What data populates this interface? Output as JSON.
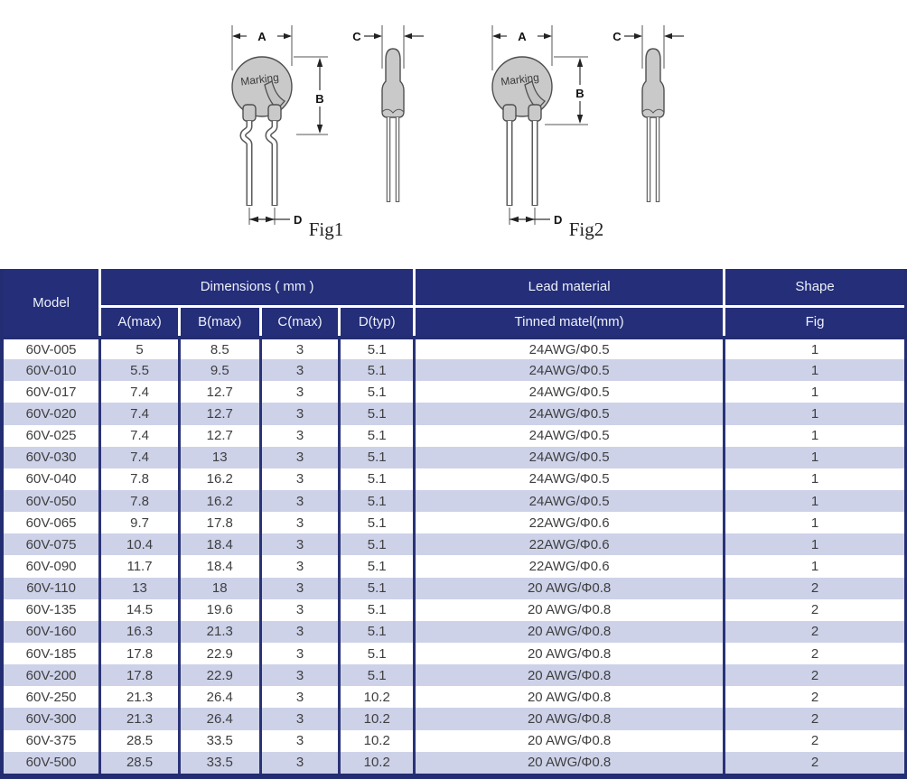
{
  "figures": {
    "fig1": {
      "caption": "Fig1",
      "marking": "Marking",
      "dim_a": "A",
      "dim_b": "B",
      "dim_c": "C",
      "dim_d": "D",
      "lead_style": "kinked"
    },
    "fig2": {
      "caption": "Fig2",
      "marking": "Marking",
      "dim_a": "A",
      "dim_b": "B",
      "dim_c": "C",
      "dim_d": "D",
      "lead_style": "straight"
    }
  },
  "table": {
    "header": {
      "model": "Model",
      "dimensions_group": "Dimensions ( mm )",
      "lead_material_group": "Lead material",
      "shape_group": "Shape",
      "col_a": "A(max)",
      "col_b": "B(max)",
      "col_c": "C(max)",
      "col_d": "D(typ)",
      "col_lead": "Tinned matel(mm)",
      "col_fig": "Fig"
    },
    "rows": [
      [
        "60V-005",
        "5",
        "8.5",
        "3",
        "5.1",
        "24AWG/Φ0.5",
        "1"
      ],
      [
        "60V-010",
        "5.5",
        "9.5",
        "3",
        "5.1",
        "24AWG/Φ0.5",
        "1"
      ],
      [
        "60V-017",
        "7.4",
        "12.7",
        "3",
        "5.1",
        "24AWG/Φ0.5",
        "1"
      ],
      [
        "60V-020",
        "7.4",
        "12.7",
        "3",
        "5.1",
        "24AWG/Φ0.5",
        "1"
      ],
      [
        "60V-025",
        "7.4",
        "12.7",
        "3",
        "5.1",
        "24AWG/Φ0.5",
        "1"
      ],
      [
        "60V-030",
        "7.4",
        "13",
        "3",
        "5.1",
        "24AWG/Φ0.5",
        "1"
      ],
      [
        "60V-040",
        "7.8",
        "16.2",
        "3",
        "5.1",
        "24AWG/Φ0.5",
        "1"
      ],
      [
        "60V-050",
        "7.8",
        "16.2",
        "3",
        "5.1",
        "24AWG/Φ0.5",
        "1"
      ],
      [
        "60V-065",
        "9.7",
        "17.8",
        "3",
        "5.1",
        "22AWG/Φ0.6",
        "1"
      ],
      [
        "60V-075",
        "10.4",
        "18.4",
        "3",
        "5.1",
        "22AWG/Φ0.6",
        "1"
      ],
      [
        "60V-090",
        "11.7",
        "18.4",
        "3",
        "5.1",
        "22AWG/Φ0.6",
        "1"
      ],
      [
        "60V-110",
        "13",
        "18",
        "3",
        "5.1",
        "20 AWG/Φ0.8",
        "2"
      ],
      [
        "60V-135",
        "14.5",
        "19.6",
        "3",
        "5.1",
        "20 AWG/Φ0.8",
        "2"
      ],
      [
        "60V-160",
        "16.3",
        "21.3",
        "3",
        "5.1",
        "20 AWG/Φ0.8",
        "2"
      ],
      [
        "60V-185",
        "17.8",
        "22.9",
        "3",
        "5.1",
        "20 AWG/Φ0.8",
        "2"
      ],
      [
        "60V-200",
        "17.8",
        "22.9",
        "3",
        "5.1",
        "20 AWG/Φ0.8",
        "2"
      ],
      [
        "60V-250",
        "21.3",
        "26.4",
        "3",
        "10.2",
        "20 AWG/Φ0.8",
        "2"
      ],
      [
        "60V-300",
        "21.3",
        "26.4",
        "3",
        "10.2",
        "20 AWG/Φ0.8",
        "2"
      ],
      [
        "60V-375",
        "28.5",
        "33.5",
        "3",
        "10.2",
        "20 AWG/Φ0.8",
        "2"
      ],
      [
        "60V-500",
        "28.5",
        "33.5",
        "3",
        "10.2",
        "20 AWG/Φ0.8",
        "2"
      ]
    ]
  },
  "colors": {
    "header_bg": "#242e79",
    "row_stripe": "#cdd2e9",
    "row_plain": "#ffffff",
    "grid_line": "#2a3377",
    "outer_border": "#232d72",
    "header_text": "#eef1fa",
    "cell_text": "#3f3f3f"
  }
}
